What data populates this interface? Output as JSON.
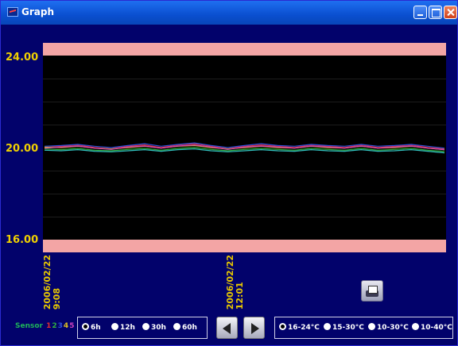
{
  "window": {
    "title": "Graph"
  },
  "chart_data": {
    "type": "line",
    "ylim": [
      16.0,
      24.0
    ],
    "y_tick_labels": [
      "24.00",
      "20.00",
      "16.00"
    ],
    "y_ticks": [
      24.0,
      20.0,
      16.0
    ],
    "alarm_bands": [
      {
        "from": 23.5,
        "to": 24.0,
        "color": "#f3a5a5"
      },
      {
        "from": 16.0,
        "to": 16.5,
        "color": "#f3a5a5"
      }
    ],
    "x_labels": [
      {
        "date": "2006/02/22",
        "time": "9:08"
      },
      {
        "date": "2006/02/22",
        "time": "12:01"
      }
    ],
    "series": [
      {
        "color": "#e03030",
        "values": [
          20.0,
          20.05,
          20.1,
          20.0,
          19.95,
          20.05,
          20.1,
          20.0,
          20.1,
          20.15,
          20.05,
          19.95,
          20.05,
          20.1,
          20.05,
          20.0,
          20.1,
          20.05,
          20.0,
          20.1,
          20.0,
          20.05,
          20.1,
          20.0,
          19.95
        ]
      },
      {
        "color": "#e0c020",
        "values": [
          20.02,
          20.0,
          20.05,
          19.98,
          19.95,
          20.0,
          20.05,
          19.98,
          20.05,
          20.08,
          20.0,
          19.95,
          20.0,
          20.05,
          20.0,
          19.98,
          20.05,
          20.0,
          19.98,
          20.05,
          19.98,
          20.0,
          20.05,
          19.98,
          19.92
        ]
      },
      {
        "color": "#30b040",
        "values": [
          19.95,
          19.92,
          19.97,
          19.9,
          19.88,
          19.93,
          19.97,
          19.9,
          19.97,
          20.0,
          19.93,
          19.88,
          19.93,
          19.97,
          19.93,
          19.9,
          19.97,
          19.93,
          19.9,
          19.97,
          19.9,
          19.93,
          19.97,
          19.9,
          19.85
        ]
      },
      {
        "color": "#3050e0",
        "values": [
          20.05,
          20.08,
          20.12,
          20.05,
          20.0,
          20.08,
          20.15,
          20.05,
          20.12,
          20.18,
          20.08,
          20.0,
          20.08,
          20.15,
          20.08,
          20.05,
          20.12,
          20.08,
          20.05,
          20.12,
          20.05,
          20.08,
          20.12,
          20.05,
          19.98
        ]
      },
      {
        "color": "#d040c0",
        "values": [
          19.98,
          20.02,
          20.06,
          19.98,
          19.93,
          20.02,
          20.06,
          19.98,
          20.06,
          20.1,
          20.02,
          19.93,
          20.02,
          20.06,
          20.02,
          19.98,
          20.06,
          20.02,
          19.98,
          20.06,
          19.98,
          20.02,
          20.06,
          19.98,
          19.92
        ]
      },
      {
        "color": "#30c0c0",
        "values": [
          19.9,
          19.88,
          19.92,
          19.86,
          19.84,
          19.88,
          19.92,
          19.86,
          19.92,
          19.95,
          19.88,
          19.84,
          19.88,
          19.92,
          19.88,
          19.86,
          19.92,
          19.88,
          19.86,
          19.92,
          19.86,
          19.88,
          19.92,
          19.86,
          19.8
        ]
      }
    ],
    "grid": true
  },
  "sensor_legend": {
    "label": "Sensor",
    "numbers": [
      {
        "text": "1",
        "color": "#e03030"
      },
      {
        "text": "2",
        "color": "#30b040"
      },
      {
        "text": "3",
        "color": "#3050e0"
      },
      {
        "text": "4",
        "color": "#e0c020"
      },
      {
        "text": "5",
        "color": "#d040c0"
      }
    ]
  },
  "time_span": {
    "options": [
      "6h",
      "12h",
      "30h",
      "60h"
    ],
    "selected": "6h"
  },
  "temp_range": {
    "options": [
      "16-24°C",
      "15-30°C",
      "10-30°C",
      "10-40°C"
    ],
    "selected": "16-24°C"
  }
}
